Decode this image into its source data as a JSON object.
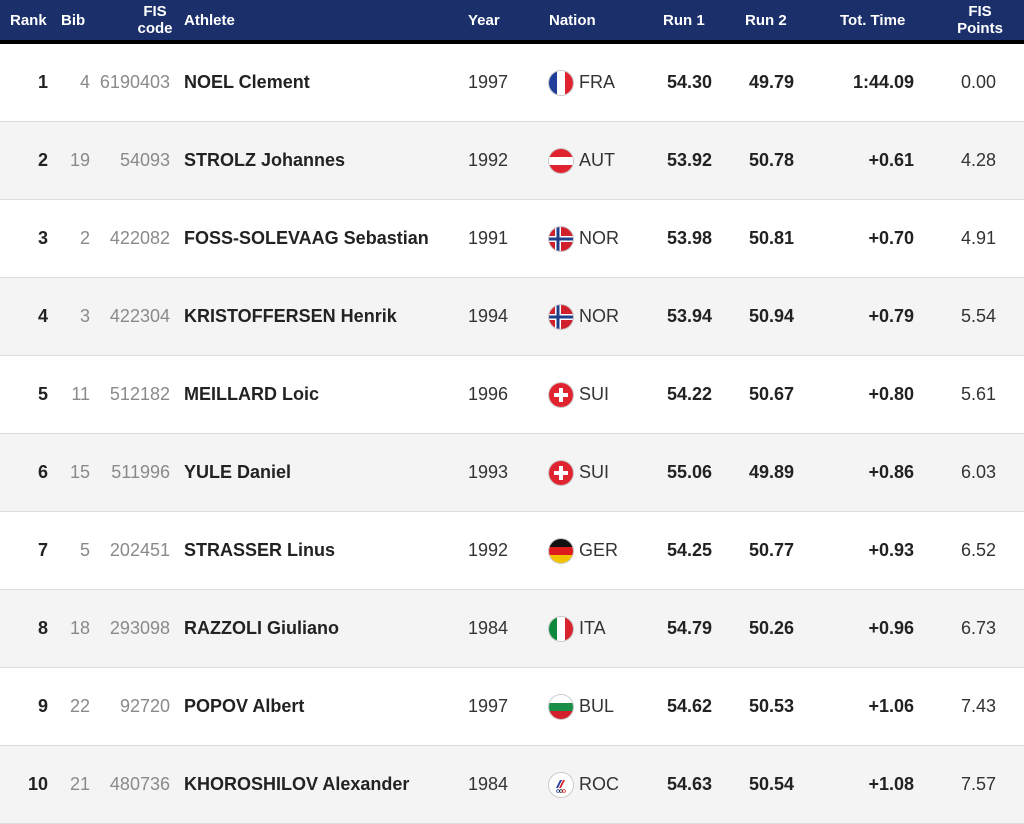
{
  "table": {
    "headers": {
      "rank": "Rank",
      "bib": "Bib",
      "fis_code_line1": "FIS",
      "fis_code_line2": "code",
      "athlete": "Athlete",
      "year": "Year",
      "nation": "Nation",
      "run1": "Run 1",
      "run2": "Run 2",
      "tot_time": "Tot. Time",
      "fis_points_line1": "FIS",
      "fis_points_line2": "Points"
    },
    "rows": [
      {
        "rank": "1",
        "bib": "4",
        "fis_code": "6190403",
        "athlete": "NOEL Clement",
        "year": "1997",
        "nation": "FRA",
        "flag": "france-flag-icon",
        "run1": "54.30",
        "run2": "49.79",
        "tot_time": "1:44.09",
        "fis_points": "0.00"
      },
      {
        "rank": "2",
        "bib": "19",
        "fis_code": "54093",
        "athlete": "STROLZ Johannes",
        "year": "1992",
        "nation": "AUT",
        "flag": "austria-flag-icon",
        "run1": "53.92",
        "run2": "50.78",
        "tot_time": "+0.61",
        "fis_points": "4.28"
      },
      {
        "rank": "3",
        "bib": "2",
        "fis_code": "422082",
        "athlete": "FOSS-SOLEVAAG Sebastian",
        "year": "1991",
        "nation": "NOR",
        "flag": "norway-flag-icon",
        "run1": "53.98",
        "run2": "50.81",
        "tot_time": "+0.70",
        "fis_points": "4.91"
      },
      {
        "rank": "4",
        "bib": "3",
        "fis_code": "422304",
        "athlete": "KRISTOFFERSEN Henrik",
        "year": "1994",
        "nation": "NOR",
        "flag": "norway-flag-icon",
        "run1": "53.94",
        "run2": "50.94",
        "tot_time": "+0.79",
        "fis_points": "5.54"
      },
      {
        "rank": "5",
        "bib": "11",
        "fis_code": "512182",
        "athlete": "MEILLARD Loic",
        "year": "1996",
        "nation": "SUI",
        "flag": "switzerland-flag-icon",
        "run1": "54.22",
        "run2": "50.67",
        "tot_time": "+0.80",
        "fis_points": "5.61"
      },
      {
        "rank": "6",
        "bib": "15",
        "fis_code": "511996",
        "athlete": "YULE Daniel",
        "year": "1993",
        "nation": "SUI",
        "flag": "switzerland-flag-icon",
        "run1": "55.06",
        "run2": "49.89",
        "tot_time": "+0.86",
        "fis_points": "6.03"
      },
      {
        "rank": "7",
        "bib": "5",
        "fis_code": "202451",
        "athlete": "STRASSER Linus",
        "year": "1992",
        "nation": "GER",
        "flag": "germany-flag-icon",
        "run1": "54.25",
        "run2": "50.77",
        "tot_time": "+0.93",
        "fis_points": "6.52"
      },
      {
        "rank": "8",
        "bib": "18",
        "fis_code": "293098",
        "athlete": "RAZZOLI Giuliano",
        "year": "1984",
        "nation": "ITA",
        "flag": "italy-flag-icon",
        "run1": "54.79",
        "run2": "50.26",
        "tot_time": "+0.96",
        "fis_points": "6.73"
      },
      {
        "rank": "9",
        "bib": "22",
        "fis_code": "92720",
        "athlete": "POPOV Albert",
        "year": "1997",
        "nation": "BUL",
        "flag": "bulgaria-flag-icon",
        "run1": "54.62",
        "run2": "50.53",
        "tot_time": "+1.06",
        "fis_points": "7.43"
      },
      {
        "rank": "10",
        "bib": "21",
        "fis_code": "480736",
        "athlete": "KHOROSHILOV Alexander",
        "year": "1984",
        "nation": "ROC",
        "flag": "roc-flag-icon",
        "run1": "54.63",
        "run2": "50.54",
        "tot_time": "+1.08",
        "fis_points": "7.57"
      }
    ]
  },
  "colors": {
    "header_bg": "#1b2f6b",
    "header_text": "#ffffff",
    "row_alt_bg": "#f4f4f4",
    "muted_text": "#8a8a8a"
  }
}
